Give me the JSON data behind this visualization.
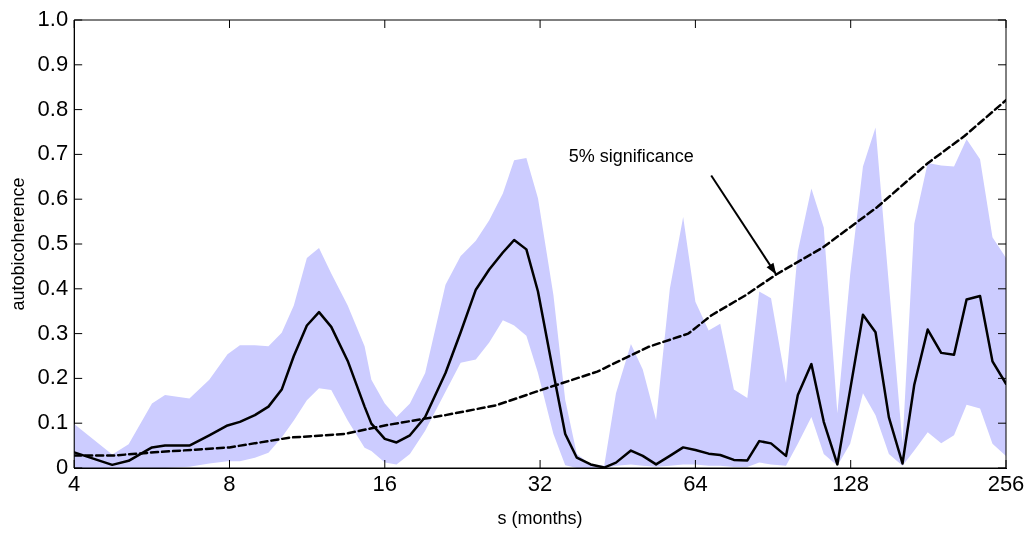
{
  "chart_data": {
    "type": "line",
    "xlabel": "s (months)",
    "ylabel": "autobicoherence",
    "log": "x",
    "xlim": [
      4,
      256
    ],
    "xticks": [
      4,
      8,
      16,
      32,
      64,
      128,
      256
    ],
    "ylim": [
      0,
      1
    ],
    "yticks": [
      0,
      0.1,
      0.2,
      0.3,
      0.4,
      0.5,
      0.6,
      0.7,
      0.8,
      0.9,
      {
        "value": 1,
        "label": "1.0"
      }
    ],
    "grid": false,
    "legend": false,
    "marker": "none",
    "annotations": [
      {
        "text": "5% significance",
        "x": 91.8,
        "y": 0.432
      }
    ],
    "series": [
      {
        "color": "#000000",
        "line_style": "solid",
        "x": [
          4,
          4.74,
          5.1,
          5.66,
          6.0,
          6.69,
          7.31,
          7.93,
          8.38,
          8.96,
          9.52,
          10.1,
          10.66,
          11.3,
          11.93,
          12.6,
          13.56,
          14.62,
          15.07,
          16,
          16.86,
          17.9,
          19.16,
          20.98,
          22.45,
          24.02,
          25.5,
          27.1,
          28.5,
          30.1,
          31.7,
          33.96,
          35.8,
          37.7,
          40.1,
          42.6,
          44.9,
          48,
          50.6,
          53.7,
          57.1,
          60.6,
          64,
          67.9,
          71.5,
          76.0,
          80.7,
          85.1,
          89.7,
          95.9,
          101.1,
          107.4,
          113.5,
          120.6,
          127.7,
          135.2,
          143,
          151.8,
          161.3,
          170,
          180.5,
          191.7,
          203,
          214.7,
          228,
          241,
          256
        ],
        "values": [
          0.035,
          0.007,
          0.016,
          0.046,
          0.05,
          0.05,
          0.073,
          0.095,
          0.103,
          0.118,
          0.137,
          0.175,
          0.25,
          0.318,
          0.348,
          0.315,
          0.239,
          0.137,
          0.099,
          0.065,
          0.057,
          0.073,
          0.114,
          0.212,
          0.303,
          0.398,
          0.443,
          0.481,
          0.509,
          0.488,
          0.394,
          0.212,
          0.076,
          0.023,
          0.008,
          0.001,
          0.012,
          0.039,
          0.027,
          0.008,
          0.027,
          0.046,
          0.04,
          0.032,
          0.029,
          0.018,
          0.017,
          0.06,
          0.055,
          0.027,
          0.163,
          0.232,
          0.103,
          0.008,
          0.175,
          0.342,
          0.303,
          0.113,
          0.01,
          0.186,
          0.309,
          0.257,
          0.253,
          0.376,
          0.384,
          0.238,
          0.188
        ],
        "lower": [
          0,
          0,
          0,
          0,
          0,
          0.003,
          0.01,
          0.015,
          0.015,
          0.023,
          0.034,
          0.068,
          0.106,
          0.151,
          0.178,
          0.174,
          0.106,
          0.045,
          0.038,
          0.012,
          0.008,
          0.031,
          0.083,
          0.17,
          0.235,
          0.242,
          0.28,
          0.33,
          0.318,
          0.295,
          0.212,
          0.076,
          0.006,
          0,
          0,
          0,
          0.005,
          0.008,
          0.005,
          0.003,
          0.005,
          0.008,
          0.008,
          0.005,
          0.005,
          0.002,
          0.002,
          0.012,
          0.008,
          0.005,
          0.054,
          0.114,
          0.031,
          0.005,
          0.054,
          0.167,
          0.118,
          0.031,
          0.005,
          0.039,
          0.08,
          0.055,
          0.073,
          0.141,
          0.133,
          0.054,
          0.027
        ],
        "upper": [
          0.098,
          0.03,
          0.053,
          0.144,
          0.163,
          0.155,
          0.197,
          0.254,
          0.274,
          0.274,
          0.272,
          0.302,
          0.363,
          0.469,
          0.491,
          0.434,
          0.363,
          0.272,
          0.197,
          0.144,
          0.114,
          0.144,
          0.212,
          0.409,
          0.473,
          0.507,
          0.553,
          0.613,
          0.687,
          0.692,
          0.602,
          0.386,
          0.152,
          0.031,
          0.008,
          0.005,
          0.167,
          0.277,
          0.22,
          0.107,
          0.4,
          0.56,
          0.371,
          0.307,
          0.322,
          0.175,
          0.156,
          0.394,
          0.379,
          0.19,
          0.484,
          0.624,
          0.537,
          0.122,
          0.432,
          0.673,
          0.76,
          0.409,
          0.054,
          0.545,
          0.681,
          0.675,
          0.673,
          0.734,
          0.689,
          0.515,
          0.469
        ]
      },
      {
        "color": "#000000",
        "line_style": "dashed",
        "x": [
          4,
          4.79,
          5.72,
          8,
          10.5,
          13.36,
          16,
          20.98,
          26.3,
          32.9,
          41.3,
          51.8,
          62,
          68.8,
          80.2,
          91.8,
          113,
          144.3,
          180.8,
          212.7,
          256
        ],
        "values": [
          0.028,
          0.028,
          0.035,
          0.046,
          0.068,
          0.076,
          0.095,
          0.118,
          0.14,
          0.178,
          0.215,
          0.27,
          0.3,
          0.341,
          0.386,
          0.432,
          0.492,
          0.583,
          0.681,
          0.741,
          0.821
        ]
      }
    ]
  }
}
